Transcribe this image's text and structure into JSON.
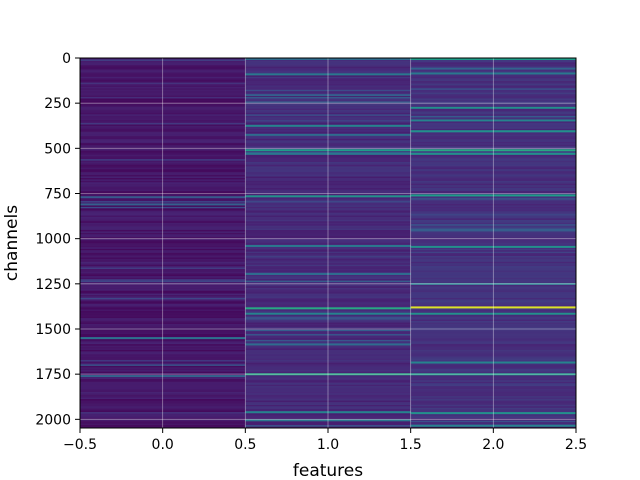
{
  "chart_data": {
    "type": "heatmap",
    "title": "",
    "xlabel": "features",
    "ylabel": "channels",
    "xlim": [
      -0.5,
      2.5
    ],
    "ylim": [
      2048,
      0
    ],
    "x_ticks": [
      "−0.5",
      "0.0",
      "0.5",
      "1.0",
      "1.5",
      "2.0",
      "2.5"
    ],
    "x_tick_values": [
      -0.5,
      0.0,
      0.5,
      1.0,
      1.5,
      2.0,
      2.5
    ],
    "y_ticks": [
      "0",
      "250",
      "500",
      "750",
      "1000",
      "1250",
      "1500",
      "1750",
      "2000"
    ],
    "y_tick_values": [
      0,
      250,
      500,
      750,
      1000,
      1250,
      1500,
      1750,
      2000
    ],
    "columns": 3,
    "rows": 2048,
    "grid": true,
    "colormap": "viridis",
    "colormap_stops": [
      "#440154",
      "#482878",
      "#3e4989",
      "#31688e",
      "#26828e",
      "#1f9e89",
      "#35b779",
      "#6ece58",
      "#b5de2b",
      "#fde725"
    ],
    "column_base_levels": [
      0.06,
      0.12,
      0.14
    ],
    "highlights": [
      {
        "column": 0,
        "row": 765,
        "value": 0.28
      },
      {
        "column": 0,
        "row": 805,
        "value": 0.3
      },
      {
        "column": 0,
        "row": 1545,
        "value": 0.38
      },
      {
        "column": 0,
        "row": 1755,
        "value": 0.32
      },
      {
        "column": 1,
        "row": 0,
        "value": 0.35
      },
      {
        "column": 1,
        "row": 85,
        "value": 0.4
      },
      {
        "column": 1,
        "row": 200,
        "value": 0.3
      },
      {
        "column": 1,
        "row": 370,
        "value": 0.45
      },
      {
        "column": 1,
        "row": 420,
        "value": 0.35
      },
      {
        "column": 1,
        "row": 505,
        "value": 0.55
      },
      {
        "column": 1,
        "row": 525,
        "value": 0.4
      },
      {
        "column": 1,
        "row": 760,
        "value": 0.5
      },
      {
        "column": 1,
        "row": 1035,
        "value": 0.4
      },
      {
        "column": 1,
        "row": 1190,
        "value": 0.35
      },
      {
        "column": 1,
        "row": 1380,
        "value": 0.6
      },
      {
        "column": 1,
        "row": 1410,
        "value": 0.45
      },
      {
        "column": 1,
        "row": 1580,
        "value": 0.35
      },
      {
        "column": 1,
        "row": 1745,
        "value": 0.6
      },
      {
        "column": 1,
        "row": 1955,
        "value": 0.45
      },
      {
        "column": 1,
        "row": 2000,
        "value": 0.4
      },
      {
        "column": 2,
        "row": 0,
        "value": 0.55
      },
      {
        "column": 2,
        "row": 80,
        "value": 0.4
      },
      {
        "column": 2,
        "row": 270,
        "value": 0.5
      },
      {
        "column": 2,
        "row": 340,
        "value": 0.45
      },
      {
        "column": 2,
        "row": 400,
        "value": 0.5
      },
      {
        "column": 2,
        "row": 505,
        "value": 0.6
      },
      {
        "column": 2,
        "row": 525,
        "value": 0.5
      },
      {
        "column": 2,
        "row": 755,
        "value": 0.55
      },
      {
        "column": 2,
        "row": 1040,
        "value": 0.5
      },
      {
        "column": 2,
        "row": 1245,
        "value": 0.4
      },
      {
        "column": 2,
        "row": 1375,
        "value": 0.95
      },
      {
        "column": 2,
        "row": 1410,
        "value": 0.5
      },
      {
        "column": 2,
        "row": 1680,
        "value": 0.45
      },
      {
        "column": 2,
        "row": 1745,
        "value": 0.55
      },
      {
        "column": 2,
        "row": 1960,
        "value": 0.5
      },
      {
        "column": 2,
        "row": 2030,
        "value": 0.45
      }
    ]
  }
}
